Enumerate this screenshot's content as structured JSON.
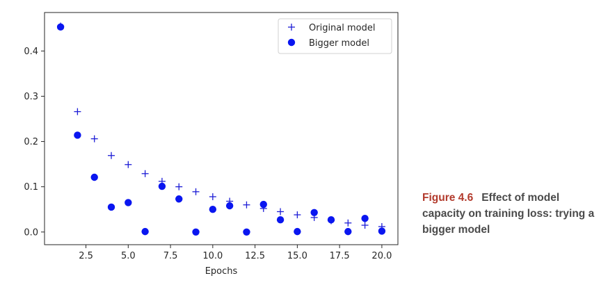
{
  "chart_data": {
    "type": "scatter",
    "xlabel": "Epochs",
    "ylabel": "",
    "xlim": [
      0.05,
      20.95
    ],
    "ylim": [
      -0.028,
      0.485
    ],
    "xticks": [
      2.5,
      5.0,
      7.5,
      10.0,
      12.5,
      15.0,
      17.5,
      20.0
    ],
    "xtick_labels": [
      "2.5",
      "5.0",
      "7.5",
      "10.0",
      "12.5",
      "15.0",
      "17.5",
      "20.0"
    ],
    "yticks": [
      0.0,
      0.1,
      0.2,
      0.3,
      0.4
    ],
    "ytick_labels": [
      "0.0",
      "0.1",
      "0.2",
      "0.3",
      "0.4"
    ],
    "legend_position": "upper-right",
    "grid": false,
    "series": [
      {
        "name": "Original model",
        "marker": "plus",
        "color": "#1d1dd6",
        "x": [
          1,
          2,
          3,
          4,
          5,
          6,
          7,
          8,
          9,
          10,
          11,
          12,
          13,
          14,
          15,
          16,
          17,
          18,
          19,
          20
        ],
        "y": [
          0.455,
          0.266,
          0.206,
          0.169,
          0.149,
          0.129,
          0.112,
          0.1,
          0.089,
          0.078,
          0.068,
          0.06,
          0.052,
          0.045,
          0.038,
          0.032,
          0.025,
          0.02,
          0.015,
          0.012
        ]
      },
      {
        "name": "Bigger model",
        "marker": "circle",
        "color": "#0a16f0",
        "x": [
          1,
          2,
          3,
          4,
          5,
          6,
          7,
          8,
          9,
          10,
          11,
          12,
          13,
          14,
          15,
          16,
          17,
          18,
          19,
          20
        ],
        "y": [
          0.453,
          0.214,
          0.121,
          0.055,
          0.065,
          0.001,
          0.101,
          0.073,
          0.0,
          0.05,
          0.058,
          0.0,
          0.061,
          0.027,
          0.001,
          0.043,
          0.027,
          0.001,
          0.03,
          0.002
        ]
      }
    ]
  },
  "caption": {
    "figure_label": "Figure 4.6",
    "text": "Effect of model capacity on training loss: trying a bigger model"
  }
}
